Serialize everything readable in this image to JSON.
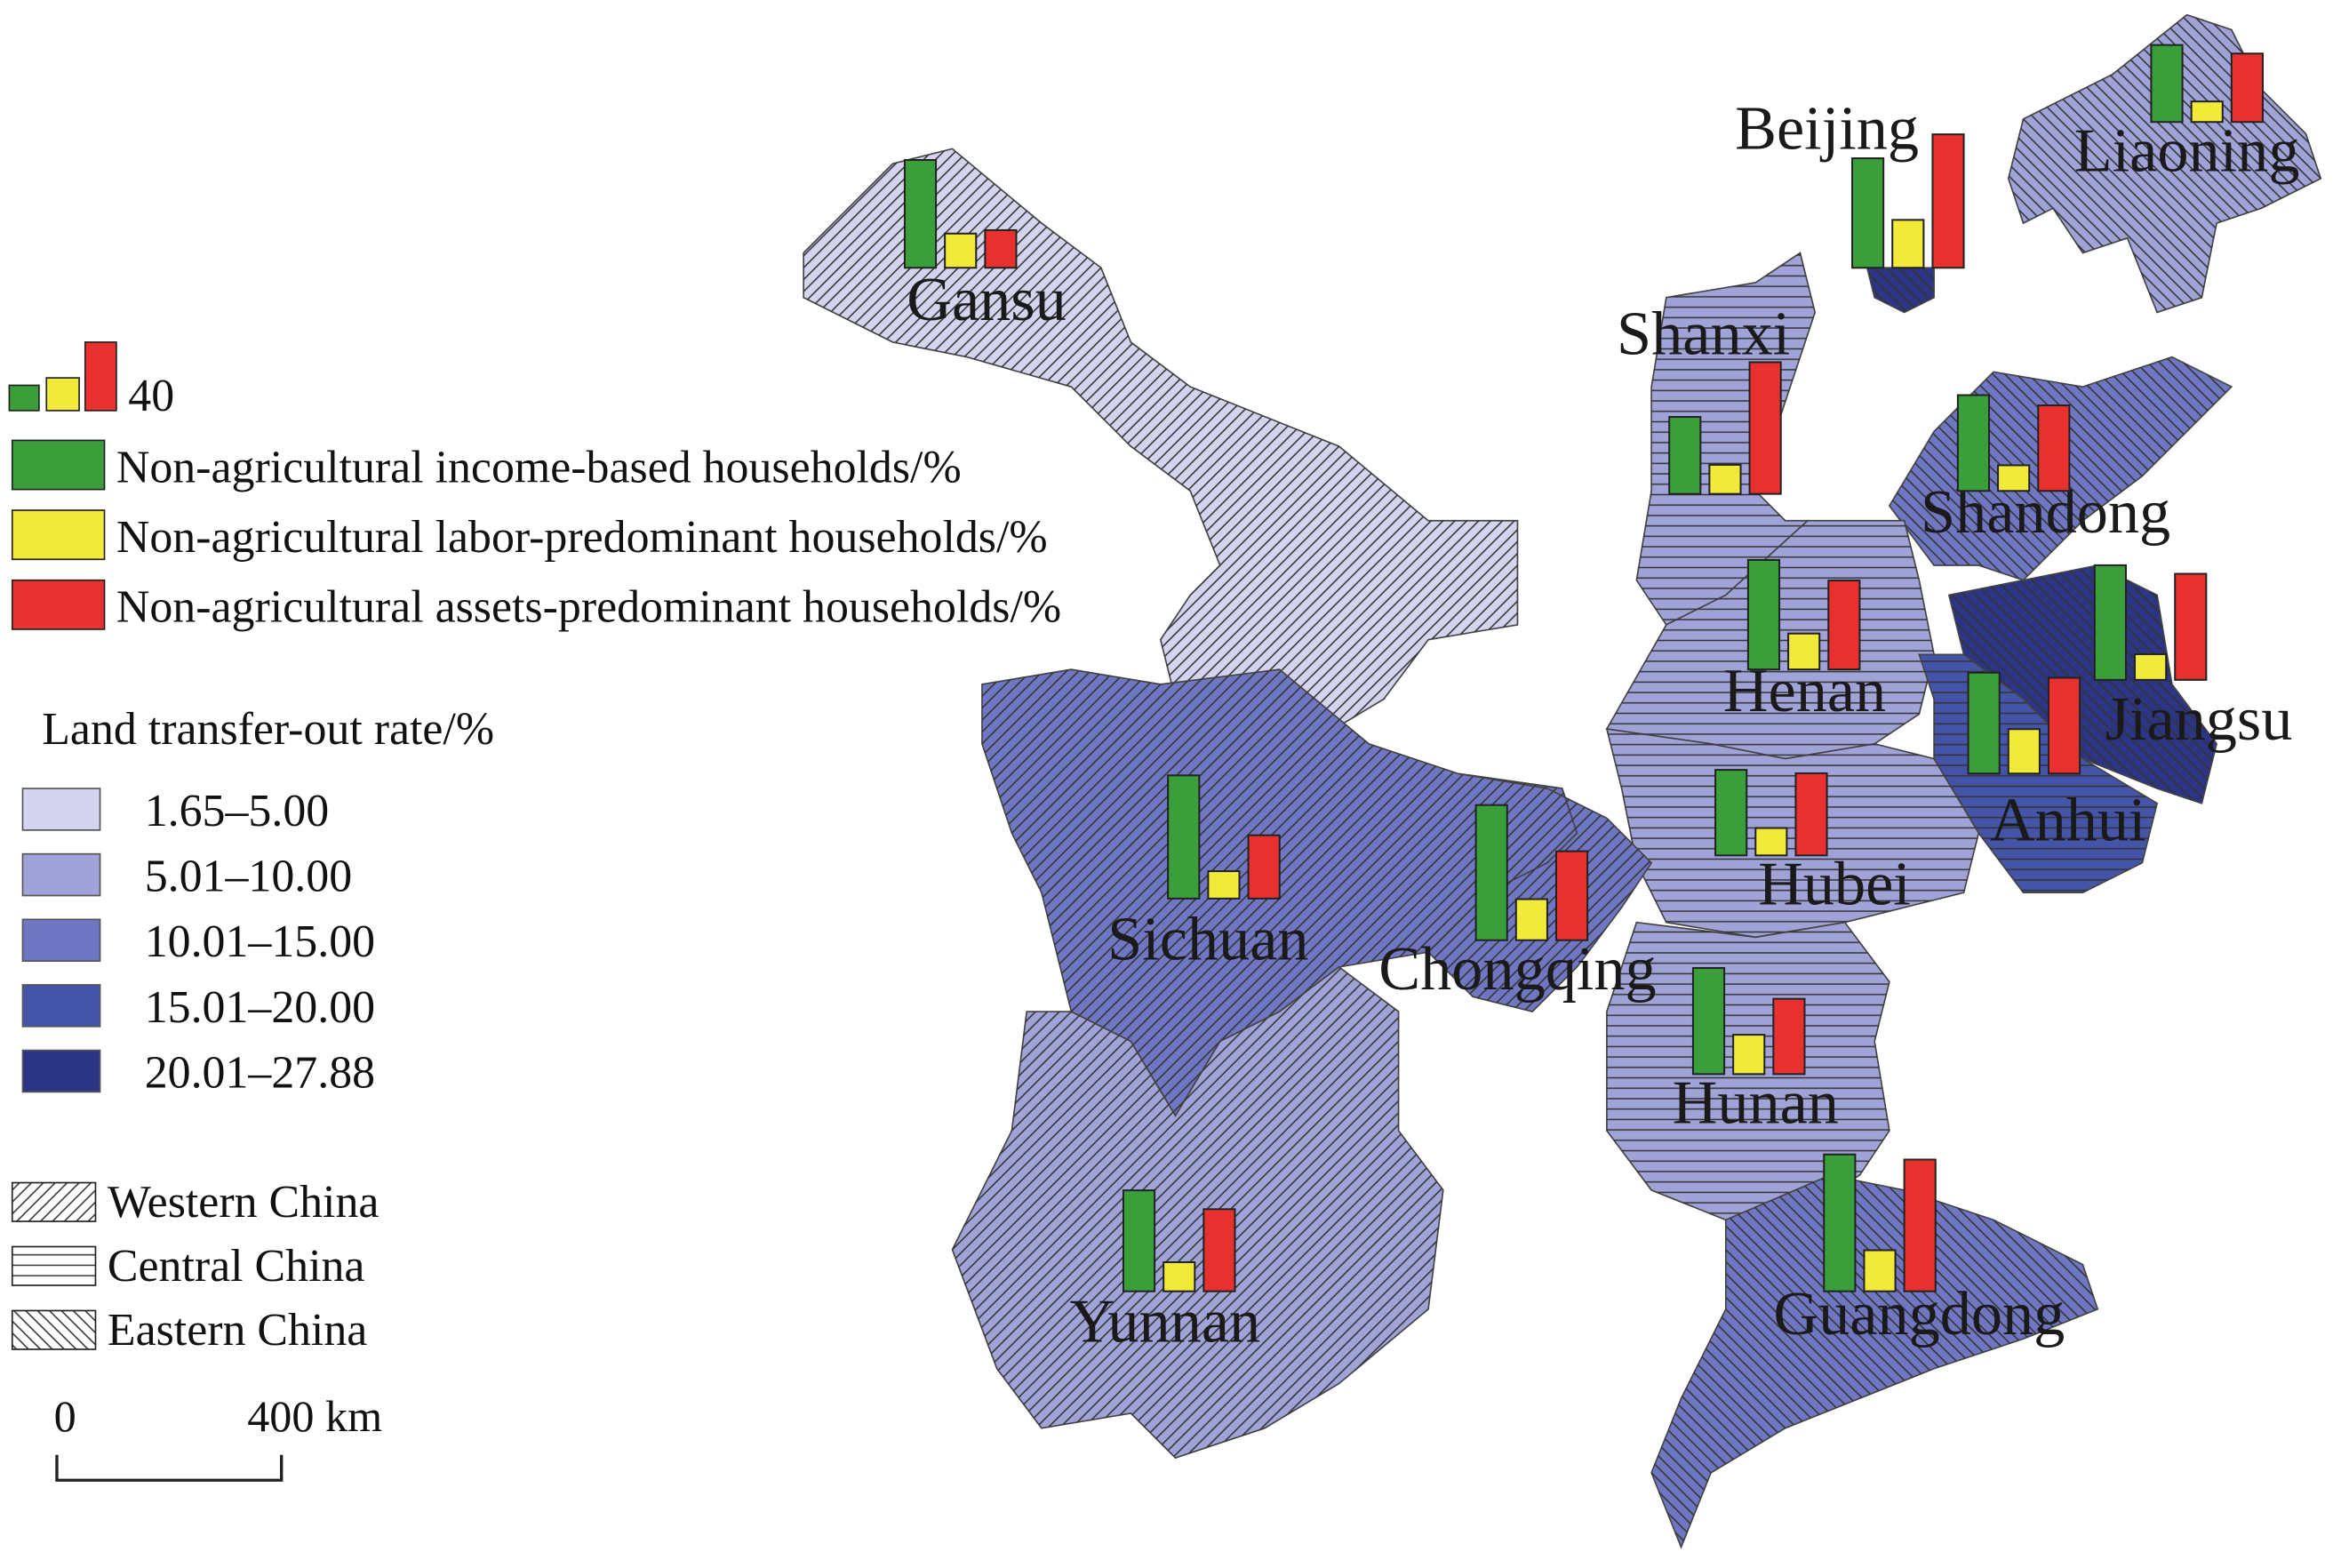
{
  "map": {
    "provinces": [
      {
        "name": "Gansu",
        "rate_class": 0,
        "region": 0,
        "values": [
          63,
          20,
          22
        ]
      },
      {
        "name": "Beijing",
        "rate_class": 4,
        "region": 2,
        "values": [
          64,
          28,
          78
        ]
      },
      {
        "name": "Liaoning",
        "rate_class": 1,
        "region": 2,
        "values": [
          45,
          12,
          40
        ]
      },
      {
        "name": "Shanxi",
        "rate_class": 1,
        "region": 1,
        "values": [
          45,
          17,
          77
        ]
      },
      {
        "name": "Shandong",
        "rate_class": 2,
        "region": 2,
        "values": [
          56,
          15,
          50
        ]
      },
      {
        "name": "Henan",
        "rate_class": 1,
        "region": 1,
        "values": [
          64,
          21,
          52
        ]
      },
      {
        "name": "Jiangsu",
        "rate_class": 4,
        "region": 2,
        "values": [
          67,
          15,
          62
        ]
      },
      {
        "name": "Anhui",
        "rate_class": 3,
        "region": 1,
        "values": [
          59,
          26,
          56
        ]
      },
      {
        "name": "Hubei",
        "rate_class": 1,
        "region": 1,
        "values": [
          50,
          16,
          48
        ]
      },
      {
        "name": "Sichuan",
        "rate_class": 2,
        "region": 0,
        "values": [
          72,
          16,
          37
        ]
      },
      {
        "name": "Chongqing",
        "rate_class": 2,
        "region": 0,
        "values": [
          79,
          24,
          52
        ]
      },
      {
        "name": "Hunan",
        "rate_class": 1,
        "region": 1,
        "values": [
          62,
          23,
          44
        ]
      },
      {
        "name": "Yunnan",
        "rate_class": 1,
        "region": 0,
        "values": [
          59,
          17,
          48
        ]
      },
      {
        "name": "Guangdong",
        "rate_class": 2,
        "region": 2,
        "values": [
          80,
          24,
          77
        ]
      }
    ]
  },
  "legend": {
    "bar_reference": 40,
    "bar_series": [
      {
        "name": "Non-agricultural income-based households/%",
        "color": "#3a9f3a"
      },
      {
        "name": "Non-agricultural labor-predominant households/%",
        "color": "#f2ea3a"
      },
      {
        "name": "Non-agricultural assets-predominant households/%",
        "color": "#e8302e"
      }
    ],
    "rate_title": "Land transfer-out rate/%",
    "rate_classes": [
      {
        "label": "1.65–5.00",
        "color": "#d4d4ee"
      },
      {
        "label": "5.01–10.00",
        "color": "#a0a3d8"
      },
      {
        "label": "10.01–15.00",
        "color": "#6f76c2"
      },
      {
        "label": "15.01–20.00",
        "color": "#4454a8"
      },
      {
        "label": "20.01–27.88",
        "color": "#2b3584"
      }
    ],
    "regions": [
      {
        "label": "Western China",
        "pattern": "west"
      },
      {
        "label": "Central China",
        "pattern": "central"
      },
      {
        "label": "Eastern China",
        "pattern": "east"
      }
    ],
    "scale_bar": {
      "start": "0",
      "end": "400 km"
    }
  }
}
